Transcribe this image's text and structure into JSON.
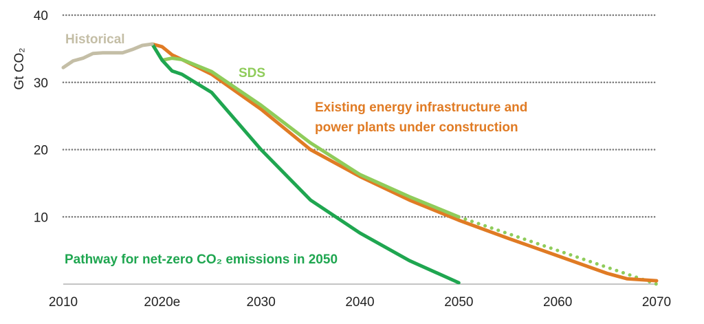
{
  "chart_data": {
    "type": "line",
    "title": "",
    "ylabel": "Gt CO₂",
    "xlabel": "",
    "xlim": [
      2010,
      2070
    ],
    "ylim": [
      0,
      40
    ],
    "grid": "horizontal dotted",
    "legend": "inline labels",
    "x_tick_labels": [
      {
        "x": 2010,
        "label": "2010"
      },
      {
        "x": 2020,
        "label": "2020e"
      },
      {
        "x": 2030,
        "label": "2030"
      },
      {
        "x": 2040,
        "label": "2040"
      },
      {
        "x": 2050,
        "label": "2050"
      },
      {
        "x": 2060,
        "label": "2060"
      },
      {
        "x": 2070,
        "label": "2070"
      }
    ],
    "y_tick_labels": [
      {
        "y": 10,
        "label": "10"
      },
      {
        "y": 20,
        "label": "20"
      },
      {
        "y": 30,
        "label": "30"
      },
      {
        "y": 40,
        "label": "40"
      }
    ],
    "series": [
      {
        "name": "Historical",
        "color": "#c4bea6",
        "style": "solid",
        "x": [
          2010,
          2011,
          2012,
          2013,
          2014,
          2015,
          2016,
          2017,
          2018,
          2019
        ],
        "y": [
          32.2,
          33.2,
          33.6,
          34.3,
          34.4,
          34.4,
          34.4,
          34.9,
          35.5,
          35.7
        ]
      },
      {
        "name": "Existing energy infrastructure and power plants under  construction",
        "color": "#e07b24",
        "style": "solid",
        "x": [
          2019,
          2020,
          2021,
          2022,
          2025,
          2030,
          2035,
          2040,
          2045,
          2050,
          2055,
          2060,
          2065,
          2067,
          2070
        ],
        "y": [
          35.7,
          35.3,
          34.1,
          33.4,
          31.2,
          26.0,
          20.0,
          16.0,
          12.5,
          9.5,
          6.8,
          4.2,
          1.6,
          0.8,
          0.5
        ]
      },
      {
        "name": "SDS",
        "color": "#8fcc5a",
        "style": "solid",
        "x": [
          2019,
          2020,
          2021,
          2022,
          2025,
          2030,
          2035,
          2040,
          2045,
          2050
        ],
        "y": [
          35.7,
          33.3,
          33.6,
          33.4,
          31.6,
          26.6,
          21.0,
          16.3,
          13.0,
          10.0
        ]
      },
      {
        "name": "SDS",
        "color": "#8fcc5a",
        "style": "dotted",
        "x": [
          2050,
          2055,
          2060,
          2065,
          2070
        ],
        "y": [
          10.0,
          7.5,
          5.0,
          2.5,
          0.0
        ]
      },
      {
        "name": "Pathway for net-zero CO₂ emissions in 2050",
        "color": "#1fa650",
        "style": "solid",
        "x": [
          2019,
          2020,
          2021,
          2022,
          2025,
          2030,
          2035,
          2040,
          2045,
          2050
        ],
        "y": [
          35.7,
          33.3,
          31.7,
          31.2,
          28.5,
          20.0,
          12.5,
          7.6,
          3.5,
          0.2
        ]
      }
    ],
    "annotations": {
      "historical": "Historical",
      "sds": "SDS",
      "existing_line1": "Existing energy infrastructure and",
      "existing_line2": "power plants under  construction",
      "nze": "Pathway for net-zero CO₂ emissions in 2050"
    }
  }
}
